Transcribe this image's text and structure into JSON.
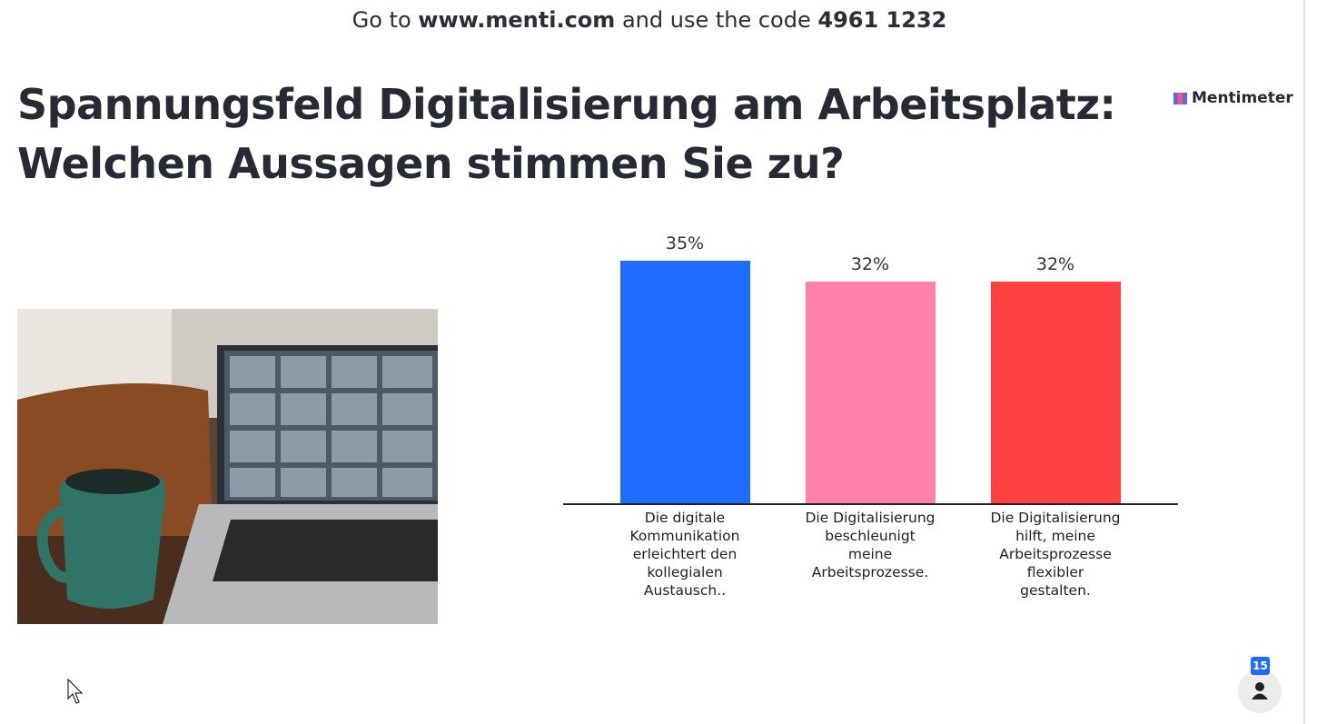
{
  "header": {
    "prefix": "Go to",
    "url": "www.menti.com",
    "middle": "and use the code",
    "code": "4961 1232"
  },
  "title": {
    "line1": "Spannungsfeld Digitalisierung am Arbeitsplatz:",
    "line2": "Welchen Aussagen stimmen Sie zu?"
  },
  "logo": "Mentimeter",
  "participants": "15",
  "chart_data": {
    "type": "bar",
    "categories": [
      "Die digitale\nKommunikation\nerleichtert den\nkollegialen\nAustausch..",
      "Die Digitalisierung\nbeschleunigt\nmeine\nArbeitsprozesse.",
      "Die Digitalisierung\nhilft, meine\nArbeitsprozesse\nflexibler\ngestalten."
    ],
    "values": [
      35,
      32,
      32
    ],
    "value_labels": [
      "35%",
      "32%",
      "32%"
    ],
    "colors": [
      "#1f6bff",
      "#ff80ab",
      "#ff4141"
    ]
  }
}
